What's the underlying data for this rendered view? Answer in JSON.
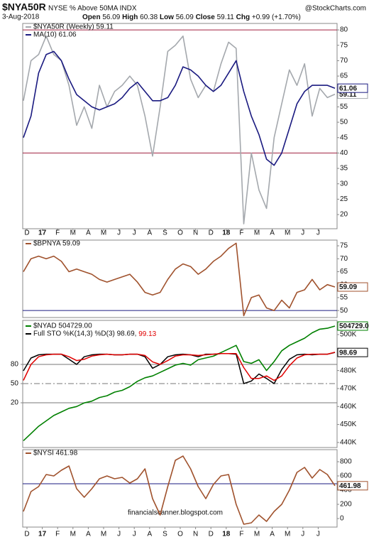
{
  "header": {
    "symbol": "$NYA50R",
    "description": "NYSE % Above 50MA INDX",
    "date": "3-Aug-2018",
    "quote": [
      {
        "label": "Open",
        "value": "56.09"
      },
      {
        "label": "High",
        "value": "60.38"
      },
      {
        "label": "Low",
        "value": "56.09"
      },
      {
        "label": "Close",
        "value": "59.11"
      },
      {
        "label": "Chg",
        "value": "+0.99 (+1.70%)"
      }
    ],
    "source": "@StockCharts.com"
  },
  "watermark": "financialscanner.blogspot.com",
  "chart_data": [
    {
      "type": "line",
      "ylim": [
        15.4,
        82.1
      ],
      "yticks": [
        80,
        75,
        70,
        65,
        60,
        55,
        50,
        45,
        40,
        35,
        30,
        25,
        20
      ],
      "hlines": [
        80,
        40
      ],
      "hline_color": "#a02040",
      "x_labels": [
        "D",
        "17",
        "F",
        "M",
        "A",
        "M",
        "J",
        "J",
        "A",
        "S",
        "O",
        "N",
        "D",
        "18",
        "F",
        "M",
        "A",
        "M",
        "J",
        "J"
      ],
      "series": [
        {
          "name": "$NYA50R (Weekly) 59.11",
          "color": "#a4a8ad",
          "end_label": "59.11",
          "values": [
            57,
            70,
            72,
            78,
            72,
            70,
            62,
            49,
            55,
            48,
            62,
            55,
            60,
            62,
            65,
            62,
            52,
            39,
            55,
            73,
            75,
            78,
            64,
            58,
            62,
            60,
            69,
            76,
            74,
            17,
            40,
            28,
            22,
            45,
            56,
            67,
            62,
            69,
            52,
            61,
            58,
            59.11
          ]
        },
        {
          "name": "MA(10) 61.06",
          "color": "#1a1a80",
          "end_label": "61.06",
          "values": [
            45,
            52,
            66,
            72,
            73,
            70,
            64,
            59,
            57,
            55,
            54,
            55,
            56,
            58,
            61,
            63,
            60,
            57,
            57,
            58,
            62,
            68,
            67,
            65,
            62,
            60,
            62,
            66,
            70,
            60,
            52,
            46,
            38,
            36,
            40,
            48,
            56,
            60,
            62,
            62,
            62,
            61.06
          ]
        }
      ]
    },
    {
      "type": "line",
      "ylim": [
        47.3,
        77.2
      ],
      "yticks": [
        75,
        70,
        65,
        60,
        55,
        50
      ],
      "hlines": [
        50
      ],
      "hline_color": "#1a1a80",
      "series": [
        {
          "name": "$BPNYA 59.09",
          "color": "#a0522d",
          "end_label": "59.09",
          "values": [
            65,
            70,
            71,
            70,
            71,
            69,
            65,
            66,
            65,
            64,
            62,
            61,
            62,
            63,
            64,
            61,
            57,
            56,
            57,
            62,
            66,
            68,
            67,
            64,
            66,
            69,
            71,
            74,
            76,
            48,
            55,
            56,
            51,
            50,
            54,
            51,
            57,
            58,
            62,
            58,
            60,
            59.09
          ]
        }
      ]
    },
    {
      "type": "line",
      "ylim": [
        437200,
        507900
      ],
      "yticks": [
        {
          "value": 500000,
          "label": "500K"
        },
        {
          "value": 490000,
          "label": "490K"
        },
        {
          "value": 480000,
          "label": "480K"
        },
        {
          "value": 470000,
          "label": "470K"
        },
        {
          "value": 460000,
          "label": "460K"
        },
        {
          "value": 450000,
          "label": "450K"
        },
        {
          "value": 440000,
          "label": "440K"
        }
      ],
      "y2lim": [
        -50,
        148.9
      ],
      "y2ticks": [
        80,
        50,
        20
      ],
      "y2hlines": [
        80,
        50,
        20
      ],
      "y2hline_styles": [
        "solid",
        "dashdot",
        "solid"
      ],
      "series": [
        {
          "name": "$NYAD 504729.00",
          "color": "#008000",
          "end_label": "504729.0",
          "values": [
            441000,
            445000,
            449000,
            452000,
            455000,
            457000,
            459000,
            460000,
            462000,
            463000,
            465000,
            466000,
            468000,
            469000,
            471000,
            474000,
            476000,
            477000,
            479000,
            481000,
            483000,
            484000,
            483000,
            486000,
            487000,
            488000,
            490000,
            492000,
            494000,
            485000,
            484000,
            486000,
            480000,
            485000,
            491000,
            494000,
            496000,
            498000,
            501000,
            503000,
            503500,
            504729
          ]
        },
        {
          "name": "Full STO %K(14,3) %D(3) 98.69,",
          "color": "#000000",
          "axis": "y2",
          "end_label": "98.69",
          "values": [
            70,
            90,
            95,
            96,
            96,
            96,
            88,
            80,
            92,
            95,
            96,
            96,
            95,
            95,
            96,
            96,
            92,
            74,
            80,
            92,
            95,
            96,
            95,
            92,
            96,
            96,
            97,
            97,
            96,
            50,
            54,
            65,
            58,
            50,
            72,
            88,
            95,
            96,
            95,
            96,
            96,
            98.69
          ]
        },
        {
          "name": "99.13",
          "color": "#e00000",
          "axis": "y2",
          "legend_inline": true,
          "values": [
            55,
            80,
            92,
            95,
            96,
            96,
            92,
            86,
            88,
            93,
            95,
            96,
            95,
            95,
            96,
            96,
            94,
            84,
            80,
            86,
            93,
            95,
            95,
            94,
            95,
            96,
            97,
            97,
            97,
            75,
            58,
            58,
            62,
            55,
            62,
            78,
            90,
            95,
            96,
            96,
            96,
            99.13
          ]
        }
      ]
    },
    {
      "type": "line",
      "ylim": [
        -120,
        970
      ],
      "yticks": [
        800,
        600,
        400,
        200,
        0
      ],
      "hlines": [
        490
      ],
      "hline_color": "#1a1a80",
      "x_labels": [
        "D",
        "17",
        "F",
        "M",
        "A",
        "M",
        "J",
        "J",
        "A",
        "S",
        "O",
        "N",
        "D",
        "18",
        "F",
        "M",
        "A",
        "M",
        "J",
        "J"
      ],
      "series": [
        {
          "name": "$NYSI 461.98",
          "color": "#a0522d",
          "end_label": "461.98",
          "values": [
            100,
            380,
            450,
            620,
            600,
            680,
            740,
            420,
            300,
            420,
            560,
            600,
            560,
            580,
            500,
            560,
            700,
            280,
            50,
            450,
            820,
            880,
            700,
            450,
            280,
            480,
            600,
            620,
            200,
            -80,
            -60,
            50,
            -40,
            100,
            200,
            400,
            650,
            720,
            570,
            690,
            620,
            461.98
          ]
        }
      ]
    }
  ]
}
